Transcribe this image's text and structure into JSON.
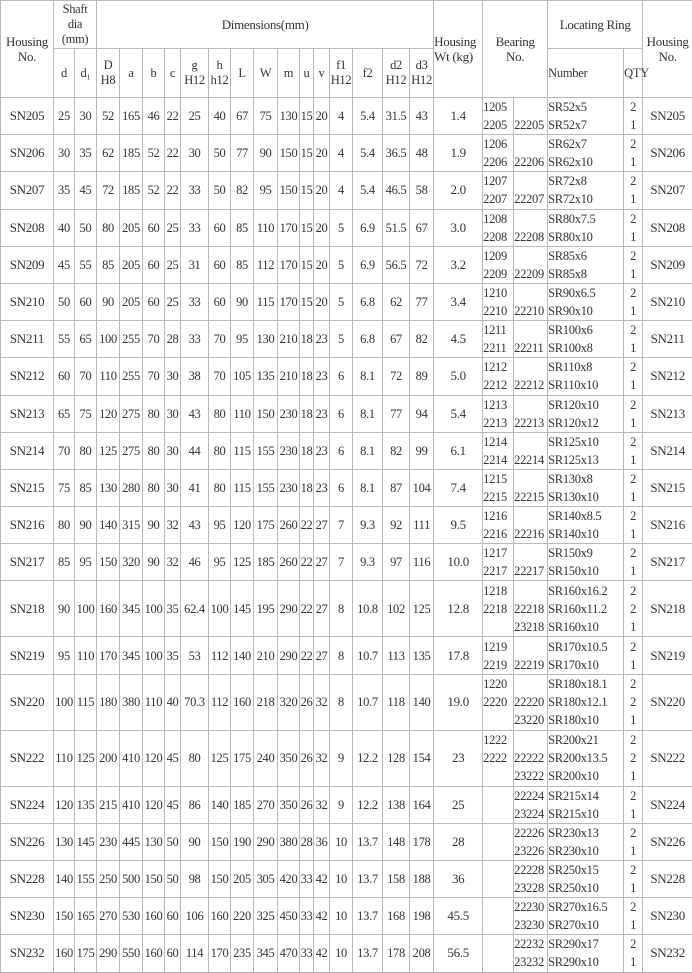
{
  "header": {
    "housing_no": "Housing No.",
    "shaft_dia": "Shaft dia (mm)",
    "dimensions": "Dimensions(mm)",
    "housing_wt": "Housing Wt (kg)",
    "bearing_no": "Bearing No.",
    "locating_ring": "Locating Ring",
    "housing_no_right": "Housing No.",
    "sub": [
      "d",
      "d₁",
      "D H8",
      "a",
      "b",
      "c",
      "g H12",
      "h h12",
      "L",
      "W",
      "m",
      "u",
      "v",
      "f1 H12",
      "f2",
      "d2 H12",
      "d3 H12"
    ],
    "number": "Number",
    "qty": "QTY"
  },
  "rows": [
    {
      "no": "SN205",
      "dims": [
        "25",
        "30",
        "52",
        "165",
        "46",
        "22",
        "25",
        "40",
        "67",
        "75",
        "130",
        "15",
        "20",
        "4",
        "5.4",
        "31.5",
        "43"
      ],
      "wt": "1.4",
      "bearing": [
        [
          "1205",
          ""
        ],
        [
          "2205",
          "22205"
        ]
      ],
      "ring": [
        "SR52x5",
        "SR52x7"
      ],
      "qty": [
        "2",
        "1"
      ]
    },
    {
      "no": "SN206",
      "dims": [
        "30",
        "35",
        "62",
        "185",
        "52",
        "22",
        "30",
        "50",
        "77",
        "90",
        "150",
        "15",
        "20",
        "4",
        "5.4",
        "36.5",
        "48"
      ],
      "wt": "1.9",
      "bearing": [
        [
          "1206",
          ""
        ],
        [
          "2206",
          "22206"
        ]
      ],
      "ring": [
        "SR62x7",
        "SR62x10"
      ],
      "qty": [
        "2",
        "1"
      ]
    },
    {
      "no": "SN207",
      "dims": [
        "35",
        "45",
        "72",
        "185",
        "52",
        "22",
        "33",
        "50",
        "82",
        "95",
        "150",
        "15",
        "20",
        "4",
        "5.4",
        "46.5",
        "58"
      ],
      "wt": "2.0",
      "bearing": [
        [
          "1207",
          ""
        ],
        [
          "2207",
          "22207"
        ]
      ],
      "ring": [
        "SR72x8",
        "SR72x10"
      ],
      "qty": [
        "2",
        "1"
      ]
    },
    {
      "no": "SN208",
      "dims": [
        "40",
        "50",
        "80",
        "205",
        "60",
        "25",
        "33",
        "60",
        "85",
        "110",
        "170",
        "15",
        "20",
        "5",
        "6.9",
        "51.5",
        "67"
      ],
      "wt": "3.0",
      "bearing": [
        [
          "1208",
          ""
        ],
        [
          "2208",
          "22208"
        ]
      ],
      "ring": [
        "SR80x7.5",
        "SR80x10"
      ],
      "qty": [
        "2",
        "1"
      ]
    },
    {
      "no": "SN209",
      "dims": [
        "45",
        "55",
        "85",
        "205",
        "60",
        "25",
        "31",
        "60",
        "85",
        "112",
        "170",
        "15",
        "20",
        "5",
        "6.9",
        "56.5",
        "72"
      ],
      "wt": "3.2",
      "bearing": [
        [
          "1209",
          ""
        ],
        [
          "2209",
          "22209"
        ]
      ],
      "ring": [
        "SR85x6",
        "SR85x8"
      ],
      "qty": [
        "2",
        "1"
      ]
    },
    {
      "no": "SN210",
      "dims": [
        "50",
        "60",
        "90",
        "205",
        "60",
        "25",
        "33",
        "60",
        "90",
        "115",
        "170",
        "15",
        "20",
        "5",
        "6.8",
        "62",
        "77"
      ],
      "wt": "3.4",
      "bearing": [
        [
          "1210",
          ""
        ],
        [
          "2210",
          "22210"
        ]
      ],
      "ring": [
        "SR90x6.5",
        "SR90x10"
      ],
      "qty": [
        "2",
        "1"
      ]
    },
    {
      "no": "SN211",
      "dims": [
        "55",
        "65",
        "100",
        "255",
        "70",
        "28",
        "33",
        "70",
        "95",
        "130",
        "210",
        "18",
        "23",
        "5",
        "6.8",
        "67",
        "82"
      ],
      "wt": "4.5",
      "bearing": [
        [
          "1211",
          ""
        ],
        [
          "2211",
          "22211"
        ]
      ],
      "ring": [
        "SR100x6",
        "SR100x8"
      ],
      "qty": [
        "2",
        "1"
      ]
    },
    {
      "no": "SN212",
      "dims": [
        "60",
        "70",
        "110",
        "255",
        "70",
        "30",
        "38",
        "70",
        "105",
        "135",
        "210",
        "18",
        "23",
        "6",
        "8.1",
        "72",
        "89"
      ],
      "wt": "5.0",
      "bearing": [
        [
          "1212",
          ""
        ],
        [
          "2212",
          "22212"
        ]
      ],
      "ring": [
        "SR110x8",
        "SR110x10"
      ],
      "qty": [
        "2",
        "1"
      ]
    },
    {
      "no": "SN213",
      "dims": [
        "65",
        "75",
        "120",
        "275",
        "80",
        "30",
        "43",
        "80",
        "110",
        "150",
        "230",
        "18",
        "23",
        "6",
        "8.1",
        "77",
        "94"
      ],
      "wt": "5.4",
      "bearing": [
        [
          "1213",
          ""
        ],
        [
          "2213",
          "22213"
        ]
      ],
      "ring": [
        "SR120x10",
        "SR120x12"
      ],
      "qty": [
        "2",
        "1"
      ]
    },
    {
      "no": "SN214",
      "dims": [
        "70",
        "80",
        "125",
        "275",
        "80",
        "30",
        "44",
        "80",
        "115",
        "155",
        "230",
        "18",
        "23",
        "6",
        "8.1",
        "82",
        "99"
      ],
      "wt": "6.1",
      "bearing": [
        [
          "1214",
          ""
        ],
        [
          "2214",
          "22214"
        ]
      ],
      "ring": [
        "SR125x10",
        "SR125x13"
      ],
      "qty": [
        "2",
        "1"
      ]
    },
    {
      "no": "SN215",
      "dims": [
        "75",
        "85",
        "130",
        "280",
        "80",
        "30",
        "41",
        "80",
        "115",
        "155",
        "230",
        "18",
        "23",
        "6",
        "8.1",
        "87",
        "104"
      ],
      "wt": "7.4",
      "bearing": [
        [
          "1215",
          ""
        ],
        [
          "2215",
          "22215"
        ]
      ],
      "ring": [
        "SR130x8",
        "SR130x10"
      ],
      "qty": [
        "2",
        "1"
      ]
    },
    {
      "no": "SN216",
      "dims": [
        "80",
        "90",
        "140",
        "315",
        "90",
        "32",
        "43",
        "95",
        "120",
        "175",
        "260",
        "22",
        "27",
        "7",
        "9.3",
        "92",
        "111"
      ],
      "wt": "9.5",
      "bearing": [
        [
          "1216",
          ""
        ],
        [
          "2216",
          "22216"
        ]
      ],
      "ring": [
        "SR140x8.5",
        "SR140x10"
      ],
      "qty": [
        "2",
        "1"
      ]
    },
    {
      "no": "SN217",
      "dims": [
        "85",
        "95",
        "150",
        "320",
        "90",
        "32",
        "46",
        "95",
        "125",
        "185",
        "260",
        "22",
        "27",
        "7",
        "9.3",
        "97",
        "116"
      ],
      "wt": "10.0",
      "bearing": [
        [
          "1217",
          ""
        ],
        [
          "2217",
          "22217"
        ]
      ],
      "ring": [
        "SR150x9",
        "SR150x10"
      ],
      "qty": [
        "2",
        "1"
      ]
    },
    {
      "no": "SN218",
      "dims": [
        "90",
        "100",
        "160",
        "345",
        "100",
        "35",
        "62.4",
        "100",
        "145",
        "195",
        "290",
        "22",
        "27",
        "8",
        "10.8",
        "102",
        "125"
      ],
      "wt": "12.8",
      "bearing": [
        [
          "1218",
          ""
        ],
        [
          "2218",
          "22218"
        ],
        [
          "",
          "23218"
        ]
      ],
      "ring": [
        "SR160x16.2",
        "SR160x11.2",
        "SR160x10"
      ],
      "qty": [
        "2",
        "2",
        "1"
      ]
    },
    {
      "no": "SN219",
      "dims": [
        "95",
        "110",
        "170",
        "345",
        "100",
        "35",
        "53",
        "112",
        "140",
        "210",
        "290",
        "22",
        "27",
        "8",
        "10.7",
        "113",
        "135"
      ],
      "wt": "17.8",
      "bearing": [
        [
          "1219",
          ""
        ],
        [
          "2219",
          "22219"
        ]
      ],
      "ring": [
        "SR170x10.5",
        "SR170x10"
      ],
      "qty": [
        "2",
        "1"
      ]
    },
    {
      "no": "SN220",
      "dims": [
        "100",
        "115",
        "180",
        "380",
        "110",
        "40",
        "70.3",
        "112",
        "160",
        "218",
        "320",
        "26",
        "32",
        "8",
        "10.7",
        "118",
        "140"
      ],
      "wt": "19.0",
      "bearing": [
        [
          "1220",
          ""
        ],
        [
          "2220",
          "22220"
        ],
        [
          "",
          "23220"
        ]
      ],
      "ring": [
        "SR180x18.1",
        "SR180x12.1",
        "SR180x10"
      ],
      "qty": [
        "2",
        "2",
        "1"
      ]
    },
    {
      "no": "SN222",
      "dims": [
        "110",
        "125",
        "200",
        "410",
        "120",
        "45",
        "80",
        "125",
        "175",
        "240",
        "350",
        "26",
        "32",
        "9",
        "12.2",
        "128",
        "154"
      ],
      "wt": "23",
      "bearing": [
        [
          "1222",
          ""
        ],
        [
          "2222",
          "22222"
        ],
        [
          "",
          "23222"
        ]
      ],
      "ring": [
        "SR200x21",
        "SR200x13.5",
        "SR200x10"
      ],
      "qty": [
        "2",
        "2",
        "1"
      ]
    },
    {
      "no": "SN224",
      "dims": [
        "120",
        "135",
        "215",
        "410",
        "120",
        "45",
        "86",
        "140",
        "185",
        "270",
        "350",
        "26",
        "32",
        "9",
        "12.2",
        "138",
        "164"
      ],
      "wt": "25",
      "bearing": [
        [
          "",
          "22224"
        ],
        [
          "",
          "23224"
        ]
      ],
      "ring": [
        "SR215x14",
        "SR215x10"
      ],
      "qty": [
        "2",
        "1"
      ]
    },
    {
      "no": "SN226",
      "dims": [
        "130",
        "145",
        "230",
        "445",
        "130",
        "50",
        "90",
        "150",
        "190",
        "290",
        "380",
        "28",
        "36",
        "10",
        "13.7",
        "148",
        "178"
      ],
      "wt": "28",
      "bearing": [
        [
          "",
          "22226"
        ],
        [
          "",
          "23226"
        ]
      ],
      "ring": [
        "SR230x13",
        "SR230x10"
      ],
      "qty": [
        "2",
        "1"
      ]
    },
    {
      "no": "SN228",
      "dims": [
        "140",
        "155",
        "250",
        "500",
        "150",
        "50",
        "98",
        "150",
        "205",
        "305",
        "420",
        "33",
        "42",
        "10",
        "13.7",
        "158",
        "188"
      ],
      "wt": "36",
      "bearing": [
        [
          "",
          "22228"
        ],
        [
          "",
          "23228"
        ]
      ],
      "ring": [
        "SR250x15",
        "SR250x10"
      ],
      "qty": [
        "2",
        "1"
      ]
    },
    {
      "no": "SN230",
      "dims": [
        "150",
        "165",
        "270",
        "530",
        "160",
        "60",
        "106",
        "160",
        "220",
        "325",
        "450",
        "33",
        "42",
        "10",
        "13.7",
        "168",
        "198"
      ],
      "wt": "45.5",
      "bearing": [
        [
          "",
          "22230"
        ],
        [
          "",
          "23230"
        ]
      ],
      "ring": [
        "SR270x16.5",
        "SR270x10"
      ],
      "qty": [
        "2",
        "1"
      ]
    },
    {
      "no": "SN232",
      "dims": [
        "160",
        "175",
        "290",
        "550",
        "160",
        "60",
        "114",
        "170",
        "235",
        "345",
        "470",
        "33",
        "42",
        "10",
        "13.7",
        "178",
        "208"
      ],
      "wt": "56.5",
      "bearing": [
        [
          "",
          "22232"
        ],
        [
          "",
          "23232"
        ]
      ],
      "ring": [
        "SR290x17",
        "SR290x10"
      ],
      "qty": [
        "2",
        "1"
      ]
    }
  ]
}
